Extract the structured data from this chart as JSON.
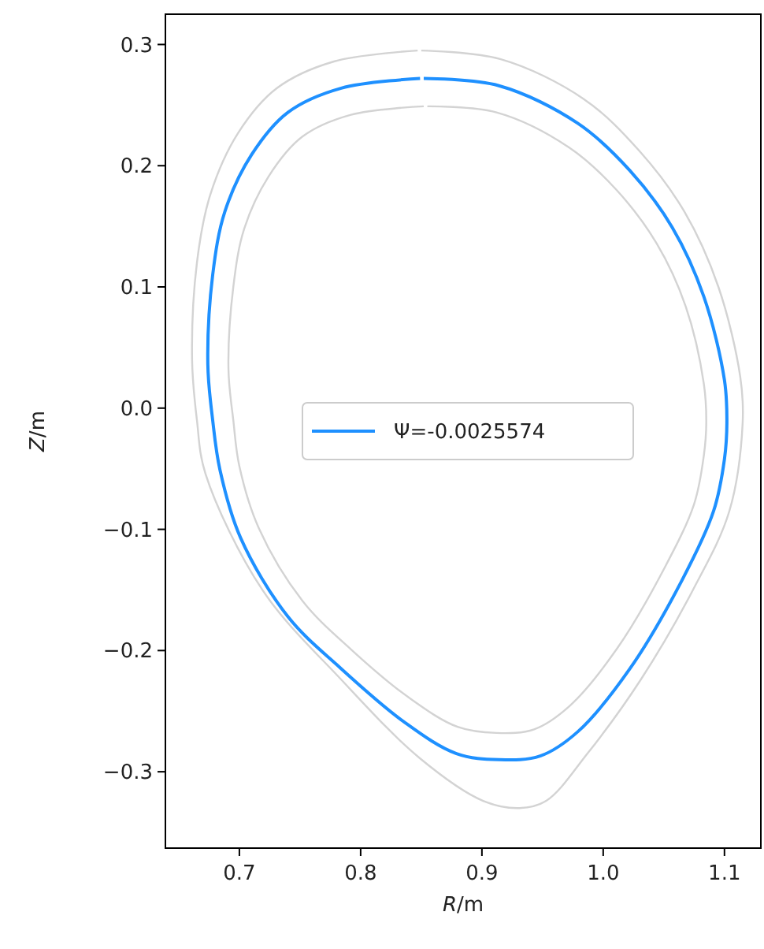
{
  "chart_data": {
    "type": "line",
    "xlabel": "R/m",
    "ylabel": "Z/m",
    "xlim": [
      0.639,
      1.13
    ],
    "ylim": [
      -0.363,
      0.325
    ],
    "xticks": [
      0.7,
      0.8,
      0.9,
      {
        "value": 1.0,
        "label": "1.0"
      },
      1.1
    ],
    "yticks": [
      {
        "value": -0.3,
        "label": "−0.3"
      },
      {
        "value": -0.2,
        "label": "−0.2"
      },
      {
        "value": -0.1,
        "label": "−0.1"
      },
      {
        "value": 0,
        "label": "0.0"
      },
      0.1,
      0.2,
      0.3
    ],
    "grid": false,
    "legend": "center",
    "line_style": "solid",
    "marker": "none",
    "series": [
      {
        "color": "#d3d3d3",
        "x": [
          0.852,
          0.792,
          0.752,
          0.724,
          0.704,
          0.695,
          0.691,
          0.695,
          0.7,
          0.716,
          0.752,
          0.792,
          0.84,
          0.88,
          0.912,
          0.943,
          0.972,
          1.011,
          1.051,
          1.075,
          1.083,
          1.085,
          1.083,
          1.068,
          1.044,
          1.011,
          0.972,
          0.912,
          0.855
        ],
        "values": [
          0.249,
          0.242,
          0.224,
          0.191,
          0.148,
          0.1,
          0.032,
          -0.01,
          -0.048,
          -0.099,
          -0.159,
          -0.199,
          -0.239,
          -0.263,
          -0.268,
          -0.265,
          -0.246,
          -0.199,
          -0.131,
          -0.079,
          -0.039,
          -0.012,
          0.02,
          0.084,
          0.136,
          0.18,
          0.215,
          0.244,
          0.249
        ]
      },
      {
        "color": "#d3d3d3",
        "x": [
          0.847,
          0.778,
          0.731,
          0.699,
          0.676,
          0.665,
          0.661,
          0.665,
          0.672,
          0.719,
          0.784,
          0.849,
          0.901,
          0.931,
          0.953,
          0.987,
          1.031,
          1.074,
          1.104,
          1.115,
          1.113,
          1.095,
          1.067,
          1.03,
          0.984,
          0.915,
          0.85
        ],
        "values": [
          0.295,
          0.286,
          0.264,
          0.227,
          0.176,
          0.12,
          0.04,
          -0.01,
          -0.054,
          -0.15,
          -0.224,
          -0.289,
          -0.324,
          -0.33,
          -0.324,
          -0.285,
          -0.224,
          -0.15,
          -0.085,
          -0.012,
          0.026,
          0.1,
          0.162,
          0.212,
          0.255,
          0.288,
          0.295
        ]
      },
      {
        "name": "Ψ=-0.0025574",
        "color": "#1e90ff",
        "x": [
          0.849,
          0.784,
          0.74,
          0.71,
          0.688,
          0.678,
          0.674,
          0.678,
          0.684,
          0.701,
          0.74,
          0.784,
          0.836,
          0.879,
          0.914,
          0.948,
          0.979,
          1.022,
          1.065,
          1.091,
          1.1,
          1.102,
          1.1,
          1.083,
          1.057,
          1.022,
          0.979,
          0.914,
          0.852
        ],
        "values": [
          0.272,
          0.264,
          0.244,
          0.209,
          0.162,
          0.11,
          0.036,
          -0.01,
          -0.051,
          -0.107,
          -0.172,
          -0.215,
          -0.259,
          -0.285,
          -0.29,
          -0.287,
          -0.267,
          -0.215,
          -0.142,
          -0.085,
          -0.042,
          -0.012,
          0.023,
          0.092,
          0.149,
          0.196,
          0.235,
          0.266,
          0.272
        ]
      }
    ]
  }
}
